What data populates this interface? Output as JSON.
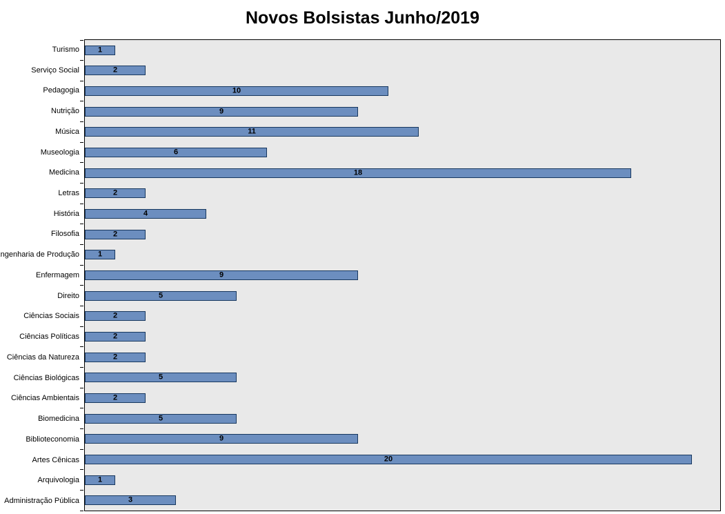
{
  "chart_data": {
    "type": "bar",
    "orientation": "horizontal",
    "title": "Novos Bolsistas Junho/2019",
    "categories": [
      "Turismo",
      "Serviço Social",
      "Pedagogia",
      "Nutrição",
      "Música",
      "Museologia",
      "Medicina",
      "Letras",
      "História",
      "Filosofia",
      "Engenharia de Produção",
      "Enfermagem",
      "Direito",
      "Ciências Sociais",
      "Ciências Políticas",
      "Ciências da Natureza",
      "Ciências Biológicas",
      "Ciências Ambientais",
      "Biomedicina",
      "Biblioteconomia",
      "Artes Cênicas",
      "Arquivologia",
      "Administração Pública"
    ],
    "values": [
      1,
      2,
      10,
      9,
      11,
      6,
      18,
      2,
      4,
      2,
      1,
      9,
      5,
      2,
      2,
      2,
      5,
      2,
      5,
      9,
      20,
      1,
      3
    ],
    "xlim": [
      0,
      20.93
    ],
    "value_labels_position": "center",
    "legend": "none",
    "grid": "off",
    "bar_color": "#6C8EBF",
    "bar_border_color": "#17375E",
    "plot_bg": "#E9E9E9"
  }
}
